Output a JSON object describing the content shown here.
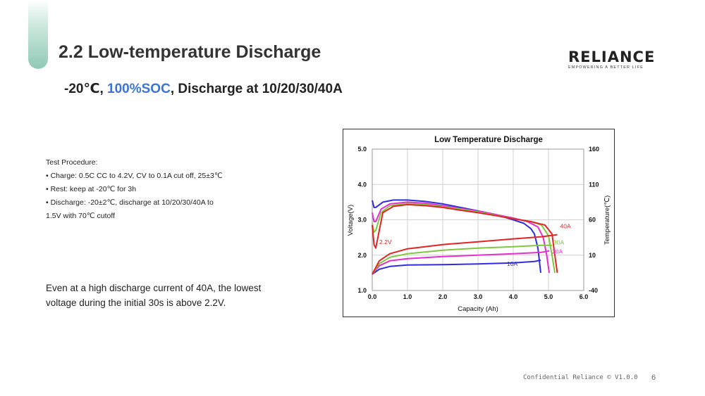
{
  "slide": {
    "title": "2.2 Low-temperature Discharge",
    "subtitle": {
      "part1": "-20℃, ",
      "highlight": "100%SOC",
      "part2": ", Discharge at 10/20/30/40A",
      "highlight_color": "#3b74d6"
    },
    "logo": {
      "word": "RELIANCE",
      "tagline": "EMPOWERING A BETTER LIFE"
    },
    "procedure": {
      "heading": "Test Procedure:",
      "items": [
        "• Charge: 0.5C CC to 4.2V, CV to 0.1A cut off, 25±3℃",
        "• Rest: keep at -20℃ for 3h",
        "• Discharge: -20±2℃, discharge at 10/20/30/40A to",
        "1.5V with 70℃ cutoff"
      ]
    },
    "note": [
      "Even at a high discharge current of 40A, the lowest",
      "voltage during the initial 30s is above 2.2V."
    ],
    "footer": "Confidential Reliance © V1.0.0",
    "page_number": "6"
  },
  "chart_data": {
    "type": "line",
    "title": "Low Temperature Discharge",
    "xlabel": "Capacity (Ah)",
    "ylabel": "Voltage(V)",
    "y2label": "Temperature(℃)",
    "xlim": [
      0.0,
      6.0
    ],
    "ylim": [
      1.0,
      5.0
    ],
    "y2lim": [
      -40,
      160
    ],
    "xticks": [
      "0.0",
      "1.0",
      "2.0",
      "3.0",
      "4.0",
      "5.0",
      "6.0"
    ],
    "yticks": [
      "1.0",
      "2.0",
      "3.0",
      "4.0",
      "5.0"
    ],
    "y2ticks": [
      "-40",
      "10",
      "60",
      "110",
      "160"
    ],
    "grid": true,
    "annotation": "2.2V",
    "series": [
      {
        "name": "10A",
        "color": "#2e2ee0",
        "voltage": [
          [
            0,
            3.55
          ],
          [
            0.05,
            3.35
          ],
          [
            0.1,
            3.35
          ],
          [
            0.3,
            3.5
          ],
          [
            0.6,
            3.56
          ],
          [
            1.0,
            3.56
          ],
          [
            1.5,
            3.52
          ],
          [
            2.0,
            3.45
          ],
          [
            2.5,
            3.35
          ],
          [
            3.0,
            3.25
          ],
          [
            3.5,
            3.15
          ],
          [
            4.0,
            3.0
          ],
          [
            4.3,
            2.9
          ],
          [
            4.5,
            2.75
          ],
          [
            4.6,
            2.6
          ],
          [
            4.7,
            2.2
          ],
          [
            4.78,
            1.5
          ]
        ],
        "temperature": [
          [
            0,
            -17
          ],
          [
            0.2,
            -10
          ],
          [
            0.5,
            -6
          ],
          [
            1.0,
            -4
          ],
          [
            2.0,
            -3.5
          ],
          [
            3.0,
            -2.5
          ],
          [
            4.0,
            -1
          ],
          [
            4.6,
            1
          ],
          [
            4.78,
            3
          ]
        ]
      },
      {
        "name": "20A",
        "color": "#e52fd0",
        "voltage": [
          [
            0,
            3.2
          ],
          [
            0.05,
            2.95
          ],
          [
            0.1,
            2.95
          ],
          [
            0.25,
            3.3
          ],
          [
            0.5,
            3.45
          ],
          [
            1.0,
            3.5
          ],
          [
            1.5,
            3.47
          ],
          [
            2.0,
            3.4
          ],
          [
            2.5,
            3.32
          ],
          [
            3.0,
            3.24
          ],
          [
            3.5,
            3.15
          ],
          [
            4.0,
            3.05
          ],
          [
            4.4,
            2.95
          ],
          [
            4.7,
            2.8
          ],
          [
            4.85,
            2.5
          ],
          [
            4.95,
            2.0
          ],
          [
            5.02,
            1.5
          ]
        ],
        "temperature": [
          [
            0,
            -17
          ],
          [
            0.2,
            -5
          ],
          [
            0.5,
            2
          ],
          [
            1.0,
            5
          ],
          [
            2.0,
            8
          ],
          [
            3.0,
            10
          ],
          [
            4.0,
            12
          ],
          [
            4.8,
            14
          ],
          [
            5.02,
            16
          ]
        ]
      },
      {
        "name": "30A",
        "color": "#7ec93e",
        "voltage": [
          [
            0,
            2.9
          ],
          [
            0.05,
            2.65
          ],
          [
            0.1,
            2.7
          ],
          [
            0.25,
            3.2
          ],
          [
            0.5,
            3.4
          ],
          [
            1.0,
            3.46
          ],
          [
            1.5,
            3.43
          ],
          [
            2.0,
            3.37
          ],
          [
            2.5,
            3.3
          ],
          [
            3.0,
            3.22
          ],
          [
            3.5,
            3.13
          ],
          [
            4.0,
            3.03
          ],
          [
            4.5,
            2.95
          ],
          [
            4.8,
            2.85
          ],
          [
            5.0,
            2.55
          ],
          [
            5.1,
            2.0
          ],
          [
            5.18,
            1.5
          ]
        ],
        "temperature": [
          [
            0,
            -17
          ],
          [
            0.2,
            -2
          ],
          [
            0.5,
            7
          ],
          [
            1.0,
            12
          ],
          [
            2.0,
            17
          ],
          [
            3.0,
            20
          ],
          [
            4.0,
            22
          ],
          [
            4.8,
            24
          ],
          [
            5.1,
            24
          ]
        ]
      },
      {
        "name": "40A",
        "color": "#e32424",
        "voltage": [
          [
            0,
            2.85
          ],
          [
            0.05,
            2.3
          ],
          [
            0.1,
            2.2
          ],
          [
            0.18,
            2.6
          ],
          [
            0.3,
            3.2
          ],
          [
            0.6,
            3.38
          ],
          [
            1.0,
            3.43
          ],
          [
            1.5,
            3.4
          ],
          [
            2.0,
            3.35
          ],
          [
            2.5,
            3.27
          ],
          [
            3.0,
            3.2
          ],
          [
            3.5,
            3.12
          ],
          [
            4.0,
            3.03
          ],
          [
            4.5,
            2.95
          ],
          [
            4.9,
            2.85
          ],
          [
            5.1,
            2.6
          ],
          [
            5.18,
            2.0
          ],
          [
            5.25,
            1.5
          ]
        ],
        "temperature": [
          [
            0,
            -17
          ],
          [
            0.2,
            2
          ],
          [
            0.5,
            12
          ],
          [
            1.0,
            19
          ],
          [
            2.0,
            25
          ],
          [
            3.0,
            29
          ],
          [
            4.0,
            33
          ],
          [
            4.8,
            36
          ],
          [
            5.25,
            39
          ]
        ]
      }
    ]
  }
}
